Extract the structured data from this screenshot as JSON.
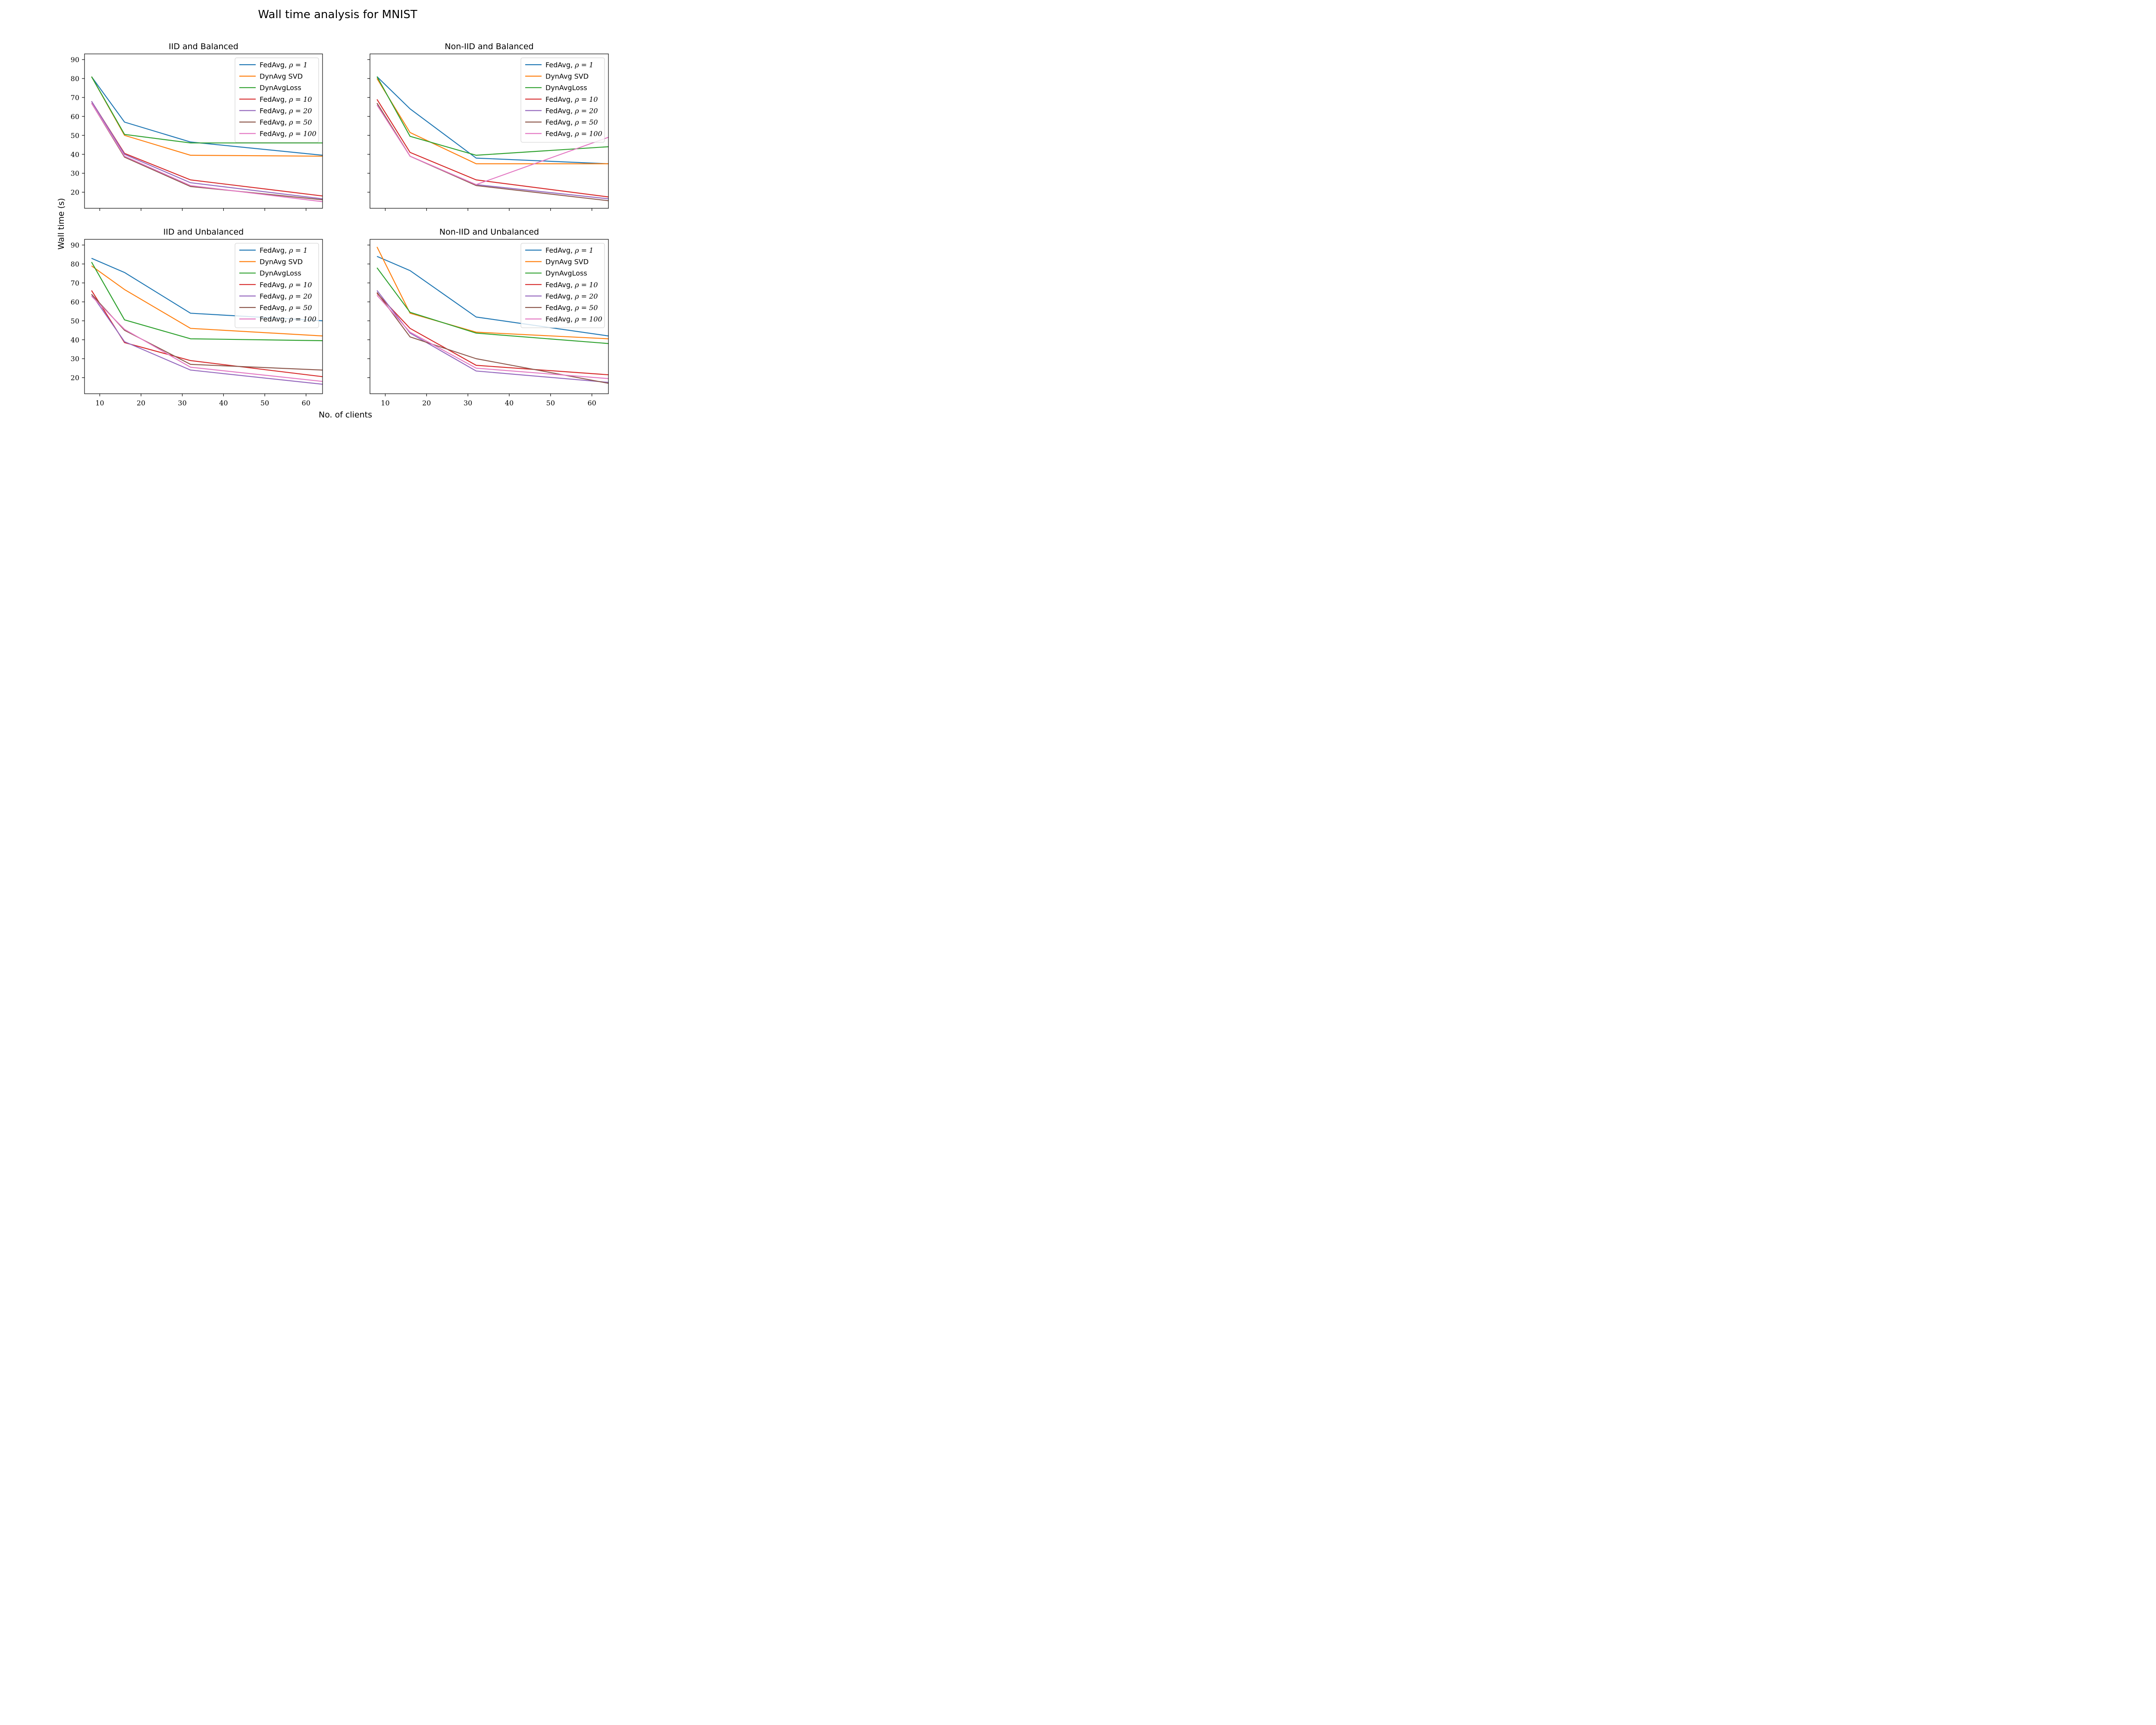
{
  "title": "Wall time analysis for MNIST",
  "xlabel": "No. of clients",
  "ylabel": "Wall time (s)",
  "colors": {
    "fedavg_1": "#1f77b4",
    "dynavg_svd": "#ff7f0e",
    "dynavg_loss": "#2ca02c",
    "fedavg_10": "#d62728",
    "fedavg_20": "#9467bd",
    "fedavg_50": "#8c564b",
    "fedavg_100": "#e377c2"
  },
  "legend": {
    "placement": "top-right",
    "entries": [
      {
        "key": "fedavg_1",
        "name": "FedAvg, ",
        "math": "ρ = 1"
      },
      {
        "key": "dynavg_svd",
        "name": "DynAvg SVD",
        "math": ""
      },
      {
        "key": "dynavg_loss",
        "name": "DynAvgLoss",
        "math": ""
      },
      {
        "key": "fedavg_10",
        "name": "FedAvg, ",
        "math": "ρ = 10"
      },
      {
        "key": "fedavg_20",
        "name": "FedAvg, ",
        "math": "ρ = 20"
      },
      {
        "key": "fedavg_50",
        "name": "FedAvg, ",
        "math": "ρ = 50"
      },
      {
        "key": "fedavg_100",
        "name": "FedAvg, ",
        "math": "ρ = 100"
      }
    ]
  },
  "chart_data": [
    {
      "type": "line",
      "title": "IID and Balanced",
      "xlim": [
        6.3,
        64
      ],
      "ylim": [
        11.5,
        93
      ],
      "xticks": [
        10,
        20,
        30,
        40,
        50,
        60
      ],
      "yticks": [
        20,
        30,
        40,
        50,
        60,
        70,
        80,
        90
      ],
      "show_x_ticklabels": false,
      "show_y_ticklabels": true,
      "x": [
        8,
        16,
        32,
        64
      ],
      "series": [
        {
          "key": "fedavg_1",
          "name": "FedAvg, ρ = 1",
          "values": [
            81,
            57,
            46.5,
            39.5
          ]
        },
        {
          "key": "dynavg_svd",
          "name": "DynAvg SVD",
          "values": [
            81,
            50,
            39.5,
            39
          ]
        },
        {
          "key": "dynavg_loss",
          "name": "DynAvgLoss",
          "values": [
            81,
            50.5,
            46,
            46
          ]
        },
        {
          "key": "fedavg_10",
          "name": "FedAvg, ρ = 10",
          "values": [
            68,
            40.5,
            26.5,
            18
          ]
        },
        {
          "key": "fedavg_20",
          "name": "FedAvg, ρ = 20",
          "values": [
            68,
            40,
            25,
            16.5
          ]
        },
        {
          "key": "fedavg_50",
          "name": "FedAvg, ρ = 50",
          "values": [
            67,
            38.5,
            23,
            16
          ]
        },
        {
          "key": "fedavg_100",
          "name": "FedAvg, ρ = 100",
          "values": [
            67,
            39,
            23.5,
            15
          ]
        }
      ]
    },
    {
      "type": "line",
      "title": "Non-IID and Balanced",
      "xlim": [
        6.3,
        64
      ],
      "ylim": [
        11.5,
        93
      ],
      "xticks": [
        10,
        20,
        30,
        40,
        50,
        60
      ],
      "yticks": [
        20,
        30,
        40,
        50,
        60,
        70,
        80,
        90
      ],
      "show_x_ticklabels": false,
      "show_y_ticklabels": false,
      "x": [
        8,
        16,
        32,
        64
      ],
      "series": [
        {
          "key": "fedavg_1",
          "name": "FedAvg, ρ = 1",
          "values": [
            81,
            64,
            38,
            35
          ]
        },
        {
          "key": "dynavg_svd",
          "name": "DynAvg SVD",
          "values": [
            80,
            51.5,
            35,
            35
          ]
        },
        {
          "key": "dynavg_loss",
          "name": "DynAvgLoss",
          "values": [
            81,
            49.5,
            39.5,
            44
          ]
        },
        {
          "key": "fedavg_10",
          "name": "FedAvg, ρ = 10",
          "values": [
            69,
            41,
            26.5,
            17.5
          ]
        },
        {
          "key": "fedavg_20",
          "name": "FedAvg, ρ = 20",
          "values": [
            67,
            39,
            24,
            16.5
          ]
        },
        {
          "key": "fedavg_50",
          "name": "FedAvg, ρ = 50",
          "values": [
            67,
            39,
            23.5,
            15.5
          ]
        },
        {
          "key": "fedavg_100",
          "name": "FedAvg, ρ = 100",
          "values": [
            66,
            39,
            24,
            49
          ]
        }
      ]
    },
    {
      "type": "line",
      "title": "IID and Unbalanced",
      "xlim": [
        6.3,
        64
      ],
      "ylim": [
        11.5,
        93
      ],
      "xticks": [
        10,
        20,
        30,
        40,
        50,
        60
      ],
      "yticks": [
        20,
        30,
        40,
        50,
        60,
        70,
        80,
        90
      ],
      "show_x_ticklabels": true,
      "show_y_ticklabels": true,
      "x": [
        8,
        16,
        32,
        64
      ],
      "series": [
        {
          "key": "fedavg_1",
          "name": "FedAvg, ρ = 1",
          "values": [
            83,
            75.5,
            54,
            50
          ]
        },
        {
          "key": "dynavg_svd",
          "name": "DynAvg SVD",
          "values": [
            79,
            66.5,
            46,
            42
          ]
        },
        {
          "key": "dynavg_loss",
          "name": "DynAvgLoss",
          "values": [
            81,
            50.5,
            40.5,
            39.5
          ]
        },
        {
          "key": "fedavg_10",
          "name": "FedAvg, ρ = 10",
          "values": [
            66,
            38.5,
            29,
            20.5
          ]
        },
        {
          "key": "fedavg_20",
          "name": "FedAvg, ρ = 20",
          "values": [
            64,
            39,
            24,
            16.5
          ]
        },
        {
          "key": "fedavg_50",
          "name": "FedAvg, ρ = 50",
          "values": [
            64,
            45,
            27,
            24
          ]
        },
        {
          "key": "fedavg_100",
          "name": "FedAvg, ρ = 100",
          "values": [
            63,
            45.5,
            25.5,
            18
          ]
        }
      ]
    },
    {
      "type": "line",
      "title": "Non-IID and Unbalanced",
      "xlim": [
        6.3,
        64
      ],
      "ylim": [
        11.5,
        93
      ],
      "xticks": [
        10,
        20,
        30,
        40,
        50,
        60
      ],
      "yticks": [
        20,
        30,
        40,
        50,
        60,
        70,
        80,
        90
      ],
      "show_x_ticklabels": true,
      "show_y_ticklabels": false,
      "x": [
        8,
        16,
        32,
        64
      ],
      "series": [
        {
          "key": "fedavg_1",
          "name": "FedAvg, ρ = 1",
          "values": [
            84,
            76.5,
            52,
            42
          ]
        },
        {
          "key": "dynavg_svd",
          "name": "DynAvg SVD",
          "values": [
            89,
            54,
            44,
            40.5
          ]
        },
        {
          "key": "dynavg_loss",
          "name": "DynAvgLoss",
          "values": [
            78,
            54.5,
            43.5,
            38
          ]
        },
        {
          "key": "fedavg_10",
          "name": "FedAvg, ρ = 10",
          "values": [
            64.5,
            46,
            26.5,
            21.5
          ]
        },
        {
          "key": "fedavg_20",
          "name": "FedAvg, ρ = 20",
          "values": [
            66,
            43.5,
            23.5,
            17.5
          ]
        },
        {
          "key": "fedavg_50",
          "name": "FedAvg, ρ = 50",
          "values": [
            65,
            41.5,
            30,
            17
          ]
        },
        {
          "key": "fedavg_100",
          "name": "FedAvg, ρ = 100",
          "values": [
            63.5,
            44,
            25,
            19.5
          ]
        }
      ]
    }
  ]
}
